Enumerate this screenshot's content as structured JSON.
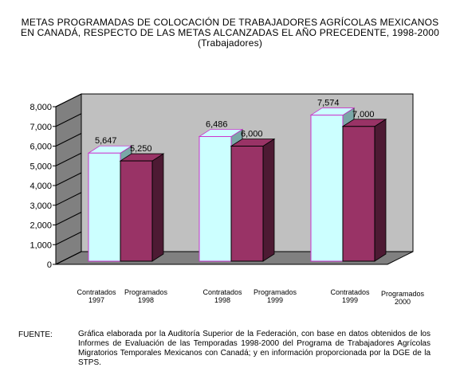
{
  "header": {
    "title_line1": "METAS PROGRAMADAS DE COLOCACIÓN DE TRABAJADORES AGRÍCOLAS MEXICANOS",
    "title_line2": "EN CANADÁ, RESPECTO DE LAS METAS ALCANZADAS EL AÑO PRECEDENTE, 1998-2000",
    "subtitle": "(Trabajadores)"
  },
  "chart_data": {
    "type": "bar",
    "style": "3d-clustered",
    "y_ticks": [
      "0",
      "1,000",
      "2,000",
      "3,000",
      "4,000",
      "5,000",
      "6,000",
      "7,000",
      "8,000"
    ],
    "ylim": [
      0,
      8000
    ],
    "grid": false,
    "legend": "none",
    "groups": [
      {
        "bars": [
          {
            "series": "Contratados",
            "value": 5647,
            "label": "5,647"
          },
          {
            "series": "Programados",
            "value": 5250,
            "label": "5,250"
          }
        ]
      },
      {
        "bars": [
          {
            "series": "Contratados",
            "value": 6486,
            "label": "6,486"
          },
          {
            "series": "Programados",
            "value": 6000,
            "label": "6,000"
          }
        ]
      },
      {
        "bars": [
          {
            "series": "Contratados",
            "value": 7574,
            "label": "7,574"
          },
          {
            "series": "Programados",
            "value": 7000,
            "label": "7,000"
          }
        ]
      }
    ],
    "category_labels": [
      [
        "Contratados",
        "1997"
      ],
      [
        "Programados",
        "1998"
      ],
      [
        "Contratados",
        "1998"
      ],
      [
        "Programados",
        "1999"
      ],
      [
        "Contratados",
        "1999"
      ],
      [
        "Programados",
        "2000"
      ]
    ],
    "colors": {
      "contratados": "#ccffff",
      "contratados_edge": "#cc33cc",
      "contratados_side": "#7aa7a7",
      "programados": "#993366",
      "programados_side": "#4d1a33",
      "wall": "#c0c0c0",
      "floor": "#808080"
    }
  },
  "footer": {
    "source_label": "FUENTE:",
    "source_text": "Gráfica elaborada por la Auditoría Superior de la Federación, con base en datos obtenidos de los Informes de Evaluación de las Temporadas 1998-2000 del Programa de Trabajadores Agrícolas Migratorios Temporales Mexicanos con Canadá; y en información proporcionada por la DGE de la STPS."
  }
}
